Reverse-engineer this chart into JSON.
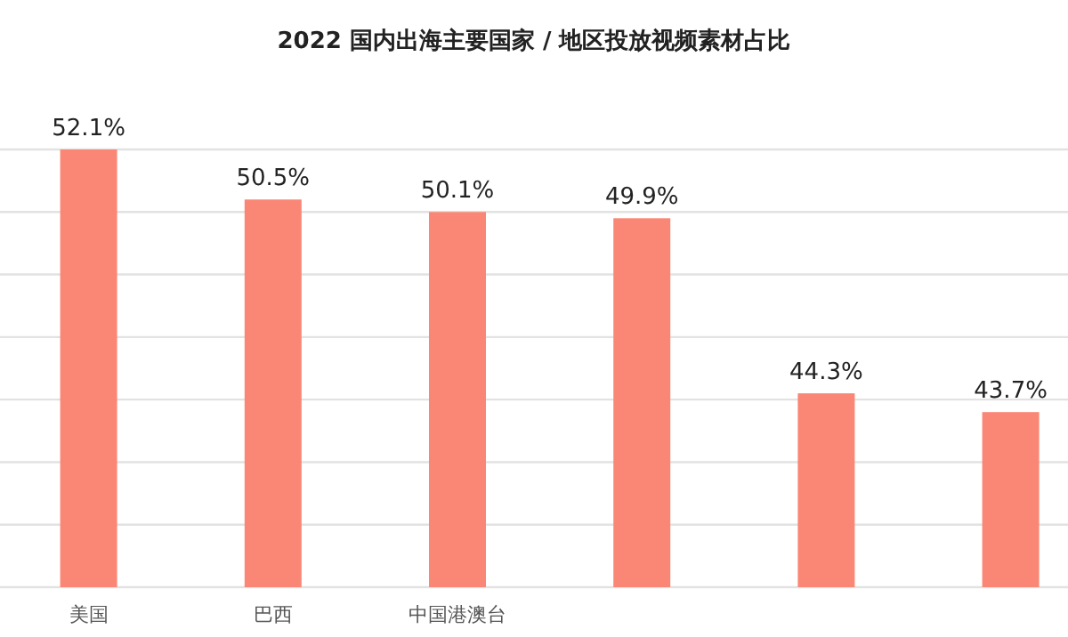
{
  "chart_data": {
    "type": "bar",
    "title": "2022 国内出海主要国家 / 地区投放视频素材占比",
    "categories": [
      "美国",
      "巴西",
      "中国港澳台",
      null,
      null,
      null
    ],
    "values": [
      52.1,
      50.5,
      50.1,
      49.9,
      44.3,
      43.7
    ],
    "value_labels": [
      "52.1%",
      "50.5%",
      "50.1%",
      "49.9%",
      "44.3%",
      "43.7%"
    ],
    "color": "#fa8775",
    "ylim": [
      38.1,
      52.1
    ],
    "yticks": [
      {
        "value": 38.1,
        "label": null
      },
      {
        "value": 40.1,
        "label": null
      },
      {
        "value": 42.1,
        "label": null
      },
      {
        "value": 44.1,
        "label": null
      },
      {
        "value": 46.1,
        "label": null
      },
      {
        "value": 48.1,
        "label": null
      },
      {
        "value": 50.1,
        "label": null
      },
      {
        "value": 52.1,
        "label": null
      }
    ],
    "grid": "y",
    "tick_labels": "x"
  }
}
